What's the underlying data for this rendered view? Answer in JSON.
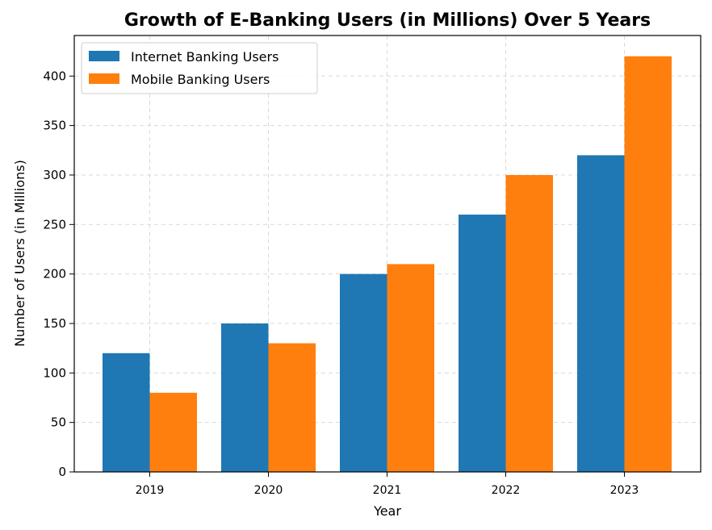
{
  "chart_data": {
    "type": "bar",
    "title": "Growth of E-Banking Users (in Millions) Over 5 Years",
    "xlabel": "Year",
    "ylabel": "Number of Users (in Millions)",
    "categories": [
      "2019",
      "2020",
      "2021",
      "2022",
      "2023"
    ],
    "series": [
      {
        "name": "Internet Banking Users",
        "color": "#1f77b4",
        "values": [
          120,
          150,
          200,
          260,
          320
        ]
      },
      {
        "name": "Mobile Banking Users",
        "color": "#ff7f0e",
        "values": [
          80,
          130,
          210,
          300,
          420
        ]
      }
    ],
    "ylim": [
      0,
      441
    ],
    "yticks": [
      0,
      50,
      100,
      150,
      200,
      250,
      300,
      350,
      400
    ],
    "grid": true,
    "legend_position": "top-left"
  }
}
